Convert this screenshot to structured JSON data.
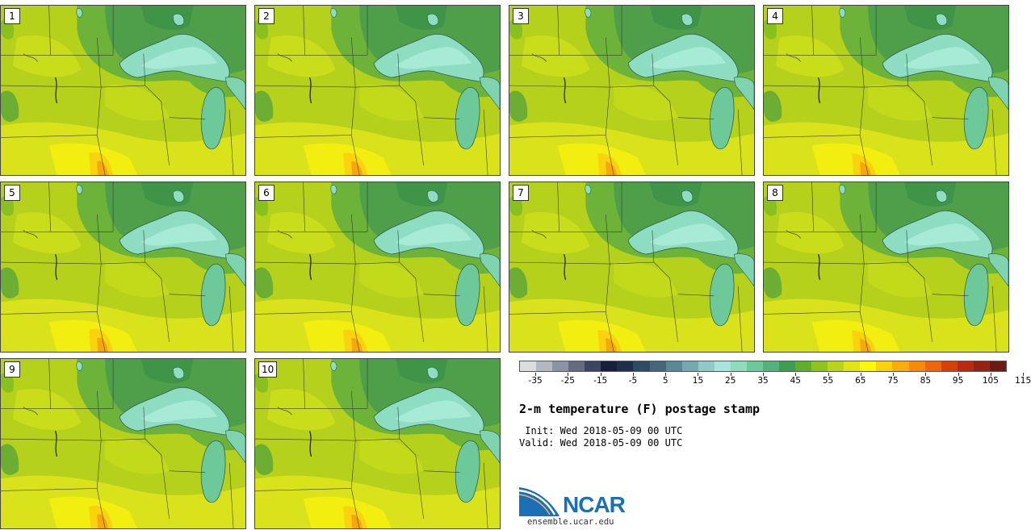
{
  "panels": [
    {
      "label": "1"
    },
    {
      "label": "2"
    },
    {
      "label": "3"
    },
    {
      "label": "4"
    },
    {
      "label": "5"
    },
    {
      "label": "6"
    },
    {
      "label": "7"
    },
    {
      "label": "8"
    },
    {
      "label": "9"
    },
    {
      "label": "10"
    }
  ],
  "colorbar": {
    "colors": [
      "#dcdde0",
      "#b4b8c2",
      "#8c93a4",
      "#636c83",
      "#3b4562",
      "#161f3c",
      "#1e2f4c",
      "#2f4a63",
      "#45677c",
      "#5a8896",
      "#74a9b0",
      "#8fc9c8",
      "#a7e4d9",
      "#8fdcbd",
      "#6ec99a",
      "#55b37a",
      "#3f9c52",
      "#5fae2c",
      "#8dc41e",
      "#b9d41a",
      "#e2e414",
      "#fbf80e",
      "#fbd20e",
      "#fbad0e",
      "#f78a0a",
      "#f0640a",
      "#d8400a",
      "#b92a10",
      "#952212",
      "#6e1a12"
    ],
    "tick_labels": [
      "-35",
      "-25",
      "-15",
      "-5",
      "5",
      "15",
      "25",
      "35",
      "45",
      "55",
      "65",
      "75",
      "85",
      "95",
      "105",
      "115"
    ]
  },
  "title": "2-m temperature (F) postage stamp",
  "init_line": " Init: Wed 2018-05-09 00 UTC",
  "valid_line": "Valid: Wed 2018-05-09 00 UTC",
  "logo": {
    "name": "NCAR",
    "url": "ensemble.ucar.edu"
  }
}
